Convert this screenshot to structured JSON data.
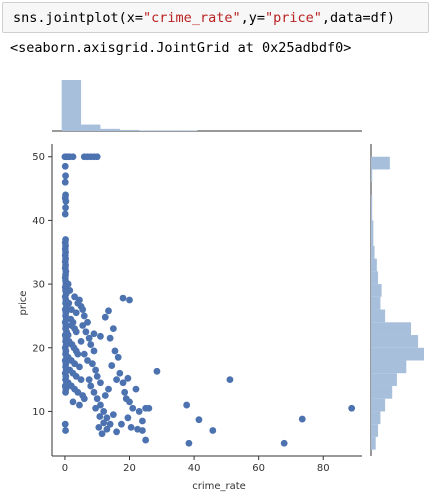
{
  "cell": {
    "code_prefix": "sns.jointplot(x=",
    "code_x": "\"crime_rate\"",
    "code_mid": ",y=",
    "code_y": "\"price\"",
    "code_suffix": ",data=df)",
    "output_text": "<seaborn.axisgrid.JointGrid at 0x25adbdf0>"
  },
  "colors": {
    "point": "#4c72b0",
    "hist": "#a8bfdc",
    "axis": "#333333"
  },
  "chart_data": {
    "type": "scatter",
    "xlabel": "crime_rate",
    "ylabel": "price",
    "xlim": [
      -4,
      92
    ],
    "ylim": [
      3,
      52
    ],
    "xticks": [
      "0",
      "20",
      "40",
      "60",
      "80"
    ],
    "yticks": [
      "10",
      "20",
      "30",
      "40",
      "50"
    ],
    "marginal_x_hist": [
      95,
      12,
      4,
      2,
      1,
      1,
      1,
      0,
      0,
      0,
      0,
      0,
      0,
      0,
      0
    ],
    "marginal_y_hist_bins": [
      5,
      7,
      9,
      11,
      13,
      15,
      17,
      19,
      21,
      23,
      25,
      27,
      29,
      31,
      33,
      35,
      37,
      39,
      41,
      43,
      45,
      47,
      49
    ],
    "marginal_y_hist_counts": [
      4,
      6,
      8,
      12,
      18,
      22,
      30,
      45,
      40,
      34,
      12,
      8,
      9,
      6,
      5,
      3,
      2,
      2,
      1,
      1,
      0,
      1,
      16
    ],
    "points": [
      [
        0.0,
        50.0
      ],
      [
        0.5,
        50.0
      ],
      [
        1.0,
        50.0
      ],
      [
        1.5,
        50.0
      ],
      [
        2.5,
        50.0
      ],
      [
        6.0,
        50.0
      ],
      [
        7.0,
        50.0
      ],
      [
        8.0,
        50.0
      ],
      [
        9.0,
        50.0
      ],
      [
        10.0,
        50.0
      ],
      [
        0.1,
        48.5
      ],
      [
        0.2,
        47.0
      ],
      [
        0.1,
        46.0
      ],
      [
        0.2,
        44.0
      ],
      [
        0.1,
        43.5
      ],
      [
        0.3,
        43.0
      ],
      [
        0.2,
        42.0
      ],
      [
        0.1,
        41.0
      ],
      [
        0.2,
        37.0
      ],
      [
        0.1,
        36.5
      ],
      [
        0.2,
        36.0
      ],
      [
        0.1,
        35.5
      ],
      [
        0.2,
        35.0
      ],
      [
        0.1,
        34.5
      ],
      [
        0.2,
        34.0
      ],
      [
        0.1,
        33.5
      ],
      [
        0.2,
        33.0
      ],
      [
        0.1,
        32.5
      ],
      [
        0.3,
        32.0
      ],
      [
        0.2,
        31.5
      ],
      [
        0.1,
        31.0
      ],
      [
        0.2,
        30.5
      ],
      [
        0.3,
        30.0
      ],
      [
        0.1,
        29.5
      ],
      [
        0.2,
        29.0
      ],
      [
        0.4,
        28.5
      ],
      [
        0.1,
        28.0
      ],
      [
        0.3,
        27.5
      ],
      [
        0.2,
        27.0
      ],
      [
        0.5,
        26.5
      ],
      [
        0.1,
        26.0
      ],
      [
        0.3,
        25.5
      ],
      [
        0.2,
        25.0
      ],
      [
        0.4,
        24.5
      ],
      [
        0.1,
        24.0
      ],
      [
        0.3,
        23.5
      ],
      [
        0.2,
        23.0
      ],
      [
        0.5,
        22.5
      ],
      [
        0.1,
        22.0
      ],
      [
        0.3,
        21.5
      ],
      [
        0.2,
        21.0
      ],
      [
        0.4,
        20.5
      ],
      [
        0.1,
        20.0
      ],
      [
        0.3,
        19.5
      ],
      [
        0.2,
        19.0
      ],
      [
        0.5,
        18.5
      ],
      [
        0.1,
        18.0
      ],
      [
        0.3,
        17.5
      ],
      [
        0.2,
        17.0
      ],
      [
        0.4,
        16.5
      ],
      [
        0.1,
        16.0
      ],
      [
        0.3,
        15.5
      ],
      [
        0.2,
        15.0
      ],
      [
        0.5,
        14.5
      ],
      [
        0.1,
        14.0
      ],
      [
        0.3,
        13.5
      ],
      [
        0.2,
        13.0
      ],
      [
        0.1,
        8.0
      ],
      [
        0.2,
        7.0
      ],
      [
        1.0,
        30.0
      ],
      [
        1.5,
        29.0
      ],
      [
        1.2,
        27.0
      ],
      [
        2.0,
        26.0
      ],
      [
        1.8,
        24.5
      ],
      [
        2.5,
        24.0
      ],
      [
        3.0,
        23.0
      ],
      [
        3.5,
        22.5
      ],
      [
        1.0,
        22.0
      ],
      [
        1.3,
        21.0
      ],
      [
        2.2,
        20.5
      ],
      [
        2.8,
        20.0
      ],
      [
        3.5,
        19.5
      ],
      [
        4.0,
        19.0
      ],
      [
        1.0,
        18.5
      ],
      [
        2.0,
        18.0
      ],
      [
        3.0,
        17.5
      ],
      [
        4.5,
        17.0
      ],
      [
        1.5,
        16.5
      ],
      [
        2.5,
        16.0
      ],
      [
        3.5,
        15.5
      ],
      [
        5.0,
        15.0
      ],
      [
        1.0,
        14.5
      ],
      [
        2.0,
        14.0
      ],
      [
        3.0,
        13.5
      ],
      [
        4.0,
        13.0
      ],
      [
        5.5,
        12.5
      ],
      [
        6.0,
        12.0
      ],
      [
        2.5,
        11.5
      ],
      [
        4.5,
        11.0
      ],
      [
        3.0,
        28.0
      ],
      [
        4.5,
        27.5
      ],
      [
        5.0,
        26.5
      ],
      [
        6.0,
        25.0
      ],
      [
        7.0,
        24.0
      ],
      [
        5.5,
        23.5
      ],
      [
        6.5,
        22.5
      ],
      [
        7.5,
        21.5
      ],
      [
        8.0,
        20.5
      ],
      [
        9.0,
        19.5
      ],
      [
        5.0,
        21.0
      ],
      [
        6.0,
        19.0
      ],
      [
        7.0,
        18.0
      ],
      [
        8.5,
        17.5
      ],
      [
        9.5,
        16.5
      ],
      [
        10.0,
        15.5
      ],
      [
        11.0,
        14.5
      ],
      [
        7.5,
        15.0
      ],
      [
        8.0,
        14.0
      ],
      [
        9.0,
        13.0
      ],
      [
        10.0,
        12.0
      ],
      [
        11.0,
        11.0
      ],
      [
        12.0,
        10.0
      ],
      [
        13.0,
        9.0
      ],
      [
        14.0,
        8.0
      ],
      [
        10.5,
        7.5
      ],
      [
        11.5,
        6.5
      ],
      [
        9.5,
        10.5
      ],
      [
        12.5,
        12.5
      ],
      [
        13.5,
        13.5
      ],
      [
        4.0,
        27.0
      ],
      [
        5.5,
        26.0
      ],
      [
        3.5,
        25.5
      ],
      [
        2.0,
        23.5
      ],
      [
        15.0,
        23.0
      ],
      [
        15.5,
        19.5
      ],
      [
        14.0,
        21.5
      ],
      [
        16.5,
        18.5
      ],
      [
        17.0,
        16.0
      ],
      [
        18.0,
        14.5
      ],
      [
        18.5,
        13.0
      ],
      [
        19.0,
        12.0
      ],
      [
        20.0,
        11.5
      ],
      [
        21.0,
        10.5
      ],
      [
        22.0,
        13.5
      ],
      [
        23.0,
        10.0
      ],
      [
        24.0,
        8.5
      ],
      [
        25.0,
        10.5
      ],
      [
        26.0,
        10.5
      ],
      [
        25.0,
        5.5
      ],
      [
        24.0,
        7.0
      ],
      [
        19.5,
        9.0
      ],
      [
        17.5,
        8.0
      ],
      [
        20.5,
        7.5
      ],
      [
        22.5,
        7.2
      ],
      [
        16.0,
        6.8
      ],
      [
        15.0,
        9.5
      ],
      [
        13.0,
        7.2
      ],
      [
        12.0,
        8.2
      ],
      [
        10.8,
        9.2
      ],
      [
        28.5,
        16.3
      ],
      [
        18.0,
        27.8
      ],
      [
        20.0,
        27.5
      ],
      [
        13.5,
        25.8
      ],
      [
        12.5,
        24.8
      ],
      [
        9.0,
        22.2
      ],
      [
        11.0,
        21.8
      ],
      [
        14.5,
        17.2
      ],
      [
        16.0,
        15.0
      ],
      [
        19.5,
        15.2
      ],
      [
        37.7,
        11.0
      ],
      [
        38.4,
        5.0
      ],
      [
        41.5,
        8.7
      ],
      [
        45.8,
        7.0
      ],
      [
        51.1,
        15.0
      ],
      [
        67.9,
        5.0
      ],
      [
        73.5,
        8.8
      ],
      [
        88.8,
        10.5
      ]
    ]
  }
}
